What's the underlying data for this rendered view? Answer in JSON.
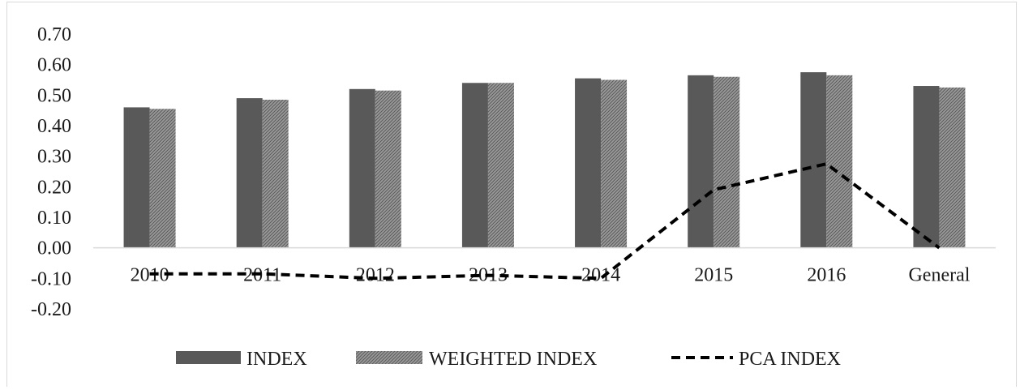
{
  "chart_data": {
    "type": "bar",
    "categories": [
      "2010",
      "2011",
      "2012",
      "2013",
      "2014",
      "2015",
      "2016",
      "General"
    ],
    "series": [
      {
        "name": "INDEX",
        "kind": "bar",
        "color": "#595959",
        "values": [
          0.46,
          0.49,
          0.52,
          0.54,
          0.555,
          0.565,
          0.575,
          0.53
        ]
      },
      {
        "name": "WEIGHTED INDEX",
        "kind": "bar",
        "pattern": "hatched",
        "color": "#7f7f7f",
        "values": [
          0.455,
          0.485,
          0.515,
          0.54,
          0.55,
          0.56,
          0.565,
          0.525
        ]
      },
      {
        "name": "PCA INDEX",
        "kind": "line",
        "style": "dashed",
        "color": "#000000",
        "values": [
          -0.085,
          -0.085,
          -0.1,
          -0.09,
          -0.1,
          0.19,
          0.275,
          0.0
        ]
      }
    ],
    "yticks": [
      "0.70",
      "0.60",
      "0.50",
      "0.40",
      "0.30",
      "0.20",
      "0.10",
      "0.00",
      "-0.10",
      "-0.20"
    ],
    "ylim": [
      -0.2,
      0.7
    ],
    "grid": false,
    "legend_position": "bottom"
  }
}
